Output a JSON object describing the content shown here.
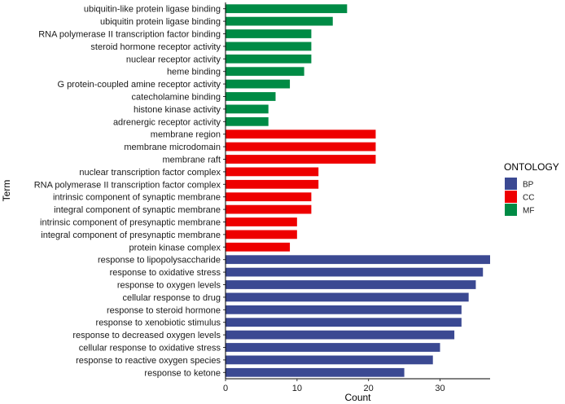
{
  "chart_data": {
    "type": "bar",
    "orientation": "horizontal",
    "xlabel": "Count",
    "ylabel": "Term",
    "xlim": [
      0,
      37
    ],
    "xticks": [
      0,
      10,
      20,
      30
    ],
    "grid": false,
    "legend": {
      "title": "ONTOLOGY",
      "placement": "right",
      "entries": [
        {
          "key": "BP",
          "label": "BP",
          "color": "#3B4992"
        },
        {
          "key": "CC",
          "label": "CC",
          "color": "#EE0000"
        },
        {
          "key": "MF",
          "label": "MF",
          "color": "#008B45"
        }
      ]
    },
    "bars": [
      {
        "term": "ubiquitin-like protein ligase binding",
        "count": 17,
        "ontology": "MF"
      },
      {
        "term": "ubiquitin protein ligase binding",
        "count": 15,
        "ontology": "MF"
      },
      {
        "term": "RNA polymerase II transcription factor binding",
        "count": 12,
        "ontology": "MF"
      },
      {
        "term": "steroid hormone receptor activity",
        "count": 12,
        "ontology": "MF"
      },
      {
        "term": "nuclear receptor activity",
        "count": 12,
        "ontology": "MF"
      },
      {
        "term": "heme binding",
        "count": 11,
        "ontology": "MF"
      },
      {
        "term": "G protein-coupled amine receptor activity",
        "count": 9,
        "ontology": "MF"
      },
      {
        "term": "catecholamine binding",
        "count": 7,
        "ontology": "MF"
      },
      {
        "term": "histone kinase activity",
        "count": 6,
        "ontology": "MF"
      },
      {
        "term": "adrenergic receptor activity",
        "count": 6,
        "ontology": "MF"
      },
      {
        "term": "membrane region",
        "count": 21,
        "ontology": "CC"
      },
      {
        "term": "membrane microdomain",
        "count": 21,
        "ontology": "CC"
      },
      {
        "term": "membrane raft",
        "count": 21,
        "ontology": "CC"
      },
      {
        "term": "nuclear transcription factor complex",
        "count": 13,
        "ontology": "CC"
      },
      {
        "term": "RNA polymerase II transcription factor complex",
        "count": 13,
        "ontology": "CC"
      },
      {
        "term": "intrinsic component of synaptic membrane",
        "count": 12,
        "ontology": "CC"
      },
      {
        "term": "integral component of synaptic membrane",
        "count": 12,
        "ontology": "CC"
      },
      {
        "term": "intrinsic component of presynaptic membrane",
        "count": 10,
        "ontology": "CC"
      },
      {
        "term": "integral component of presynaptic membrane",
        "count": 10,
        "ontology": "CC"
      },
      {
        "term": "protein kinase complex",
        "count": 9,
        "ontology": "CC"
      },
      {
        "term": "response to lipopolysaccharide",
        "count": 37,
        "ontology": "BP"
      },
      {
        "term": "response to oxidative stress",
        "count": 36,
        "ontology": "BP"
      },
      {
        "term": "response to oxygen levels",
        "count": 35,
        "ontology": "BP"
      },
      {
        "term": "cellular response to drug",
        "count": 34,
        "ontology": "BP"
      },
      {
        "term": "response to steroid hormone",
        "count": 33,
        "ontology": "BP"
      },
      {
        "term": "response to xenobiotic stimulus",
        "count": 33,
        "ontology": "BP"
      },
      {
        "term": "response to decreased oxygen levels",
        "count": 32,
        "ontology": "BP"
      },
      {
        "term": "cellular response to oxidative stress",
        "count": 30,
        "ontology": "BP"
      },
      {
        "term": "response to reactive oxygen species",
        "count": 29,
        "ontology": "BP"
      },
      {
        "term": "response to ketone",
        "count": 25,
        "ontology": "BP"
      }
    ]
  }
}
